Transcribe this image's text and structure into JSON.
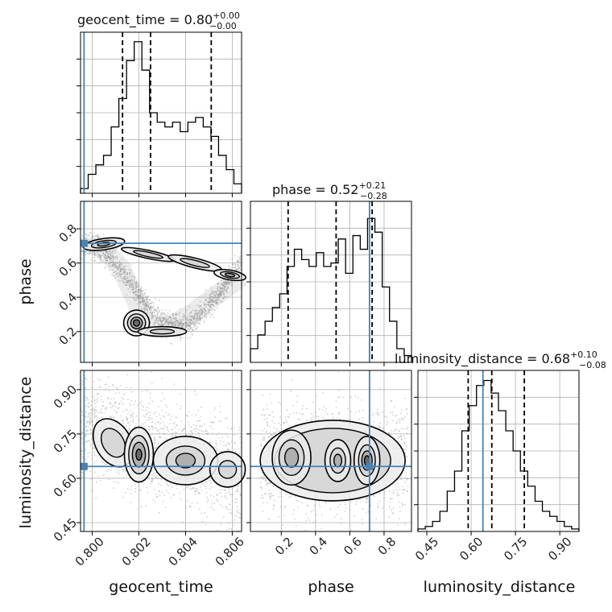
{
  "chart_data": {
    "type": "corner",
    "parameters": [
      {
        "name": "geocent_time",
        "label": "geocent_time",
        "range": [
          0.7995,
          0.8064
        ],
        "ticks": [
          0.8,
          0.802,
          0.804,
          0.806
        ],
        "tick_labels": [
          "0.800",
          "0.802",
          "0.804",
          "0.806"
        ],
        "truth": 0.79965,
        "quantiles": [
          0.8013,
          0.8025,
          0.8051
        ],
        "title_main": "geocent_time = 0.80",
        "title_sup": "+0.00",
        "title_sub": "−0.00",
        "hist": [
          1,
          4,
          6,
          8,
          14,
          20,
          28,
          32,
          26,
          17,
          15,
          14,
          15,
          13,
          15,
          16,
          14,
          12,
          8,
          5,
          2
        ],
        "hist_max": 34
      },
      {
        "name": "phase",
        "label": "phase",
        "range": [
          0.02,
          0.96
        ],
        "ticks": [
          0.2,
          0.4,
          0.6,
          0.8
        ],
        "tick_labels": [
          "0.2",
          "0.4",
          "0.6",
          "0.8"
        ],
        "truth": 0.715,
        "quantiles": [
          0.24,
          0.52,
          0.73
        ],
        "title_main": "phase = 0.52",
        "title_sup": "+0.21",
        "title_sub": "−0.28",
        "hist": [
          4,
          8,
          12,
          16,
          20,
          28,
          33,
          30,
          28,
          32,
          28,
          29,
          36,
          26,
          37,
          33,
          42,
          38,
          22,
          12,
          4,
          2
        ],
        "hist_max": 47
      },
      {
        "name": "luminosity_distance",
        "label": "luminosity_distance",
        "range": [
          0.42,
          0.965
        ],
        "ticks": [
          0.45,
          0.6,
          0.75,
          0.9
        ],
        "tick_labels": [
          "0.45",
          "0.60",
          "0.75",
          "0.90"
        ],
        "truth": 0.64,
        "quantiles": [
          0.59,
          0.67,
          0.78
        ],
        "title_main": "luminosity_distance = 0.68",
        "title_sup": "+0.10",
        "title_sub": "−0.08",
        "hist": [
          1,
          2,
          4,
          8,
          16,
          24,
          40,
          50,
          58,
          60,
          55,
          48,
          40,
          32,
          24,
          18,
          12,
          8,
          6,
          4,
          2,
          1
        ],
        "hist_max": 64
      }
    ],
    "grid": true
  },
  "colors": {
    "truth": "#4682b4",
    "contour": "#000000",
    "scatter": "#9a9a9a",
    "grid": "#b0b0b0",
    "hist": "#000000"
  }
}
